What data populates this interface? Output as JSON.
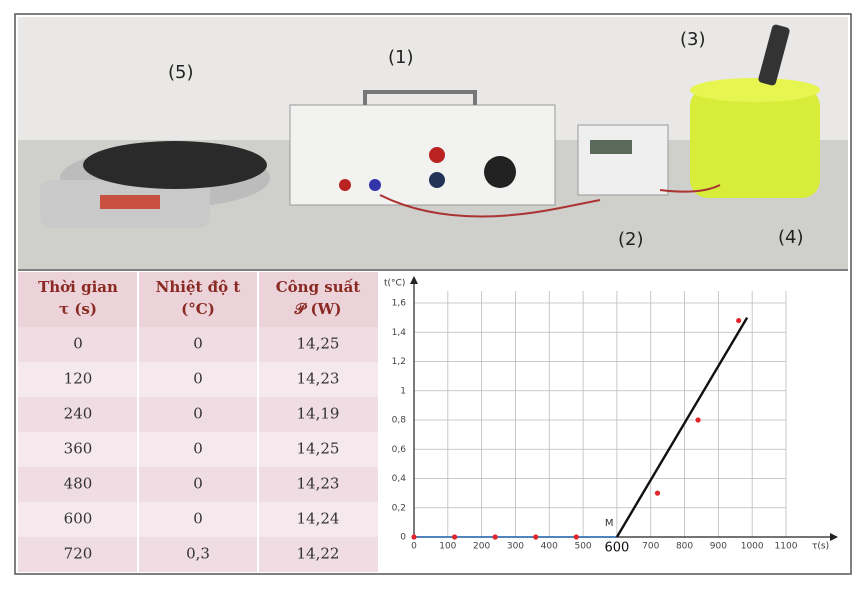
{
  "photo": {
    "labels": [
      "(1)",
      "(2)",
      "(3)",
      "(4)",
      "(5)"
    ]
  },
  "table": {
    "header": [
      [
        "Thời gian",
        "τ (s)"
      ],
      [
        "Nhiệt độ t",
        "(°C)"
      ],
      [
        "Công suất",
        "𝒫 (W)"
      ]
    ],
    "rows": [
      [
        "0",
        "0",
        "14,25"
      ],
      [
        "120",
        "0",
        "14,23"
      ],
      [
        "240",
        "0",
        "14,19"
      ],
      [
        "360",
        "0",
        "14,25"
      ],
      [
        "480",
        "0",
        "14,23"
      ],
      [
        "600",
        "0",
        "14,24"
      ],
      [
        "720",
        "0,3",
        "14,22"
      ]
    ]
  },
  "chart_data": {
    "type": "scatter",
    "x_label": "τ(s)",
    "y_label": "t(°C)",
    "annotations": [
      "M",
      "600"
    ],
    "xlim": [
      0,
      1100
    ],
    "ylim": [
      0,
      1.6
    ],
    "xticks": [
      0,
      100,
      200,
      300,
      400,
      500,
      600,
      700,
      800,
      900,
      1000,
      1100
    ],
    "yticks": [
      0,
      {
        "value": 0.2,
        "label": "0,2"
      },
      {
        "value": 0.4,
        "label": "0,4"
      },
      {
        "value": 0.6,
        "label": "0,6"
      },
      {
        "value": 0.8,
        "label": "0,8"
      },
      1,
      {
        "value": 1.2,
        "label": "1,2"
      },
      {
        "value": 1.4,
        "label": "1,4"
      },
      {
        "value": 1.6,
        "label": "1,6"
      }
    ],
    "grid": true,
    "points": {
      "color": "#e0262b",
      "x": [
        0,
        120,
        240,
        360,
        480,
        720,
        840,
        960
      ],
      "y": [
        0,
        0,
        0,
        0,
        0,
        0.3,
        0.8,
        1.48
      ]
    },
    "lines": [
      {
        "color": "#2b6fb8",
        "x": [
          0,
          600
        ],
        "y": [
          0,
          0
        ]
      },
      {
        "color": "#111111",
        "x": [
          600,
          985
        ],
        "y": [
          0,
          1.5
        ]
      }
    ]
  }
}
